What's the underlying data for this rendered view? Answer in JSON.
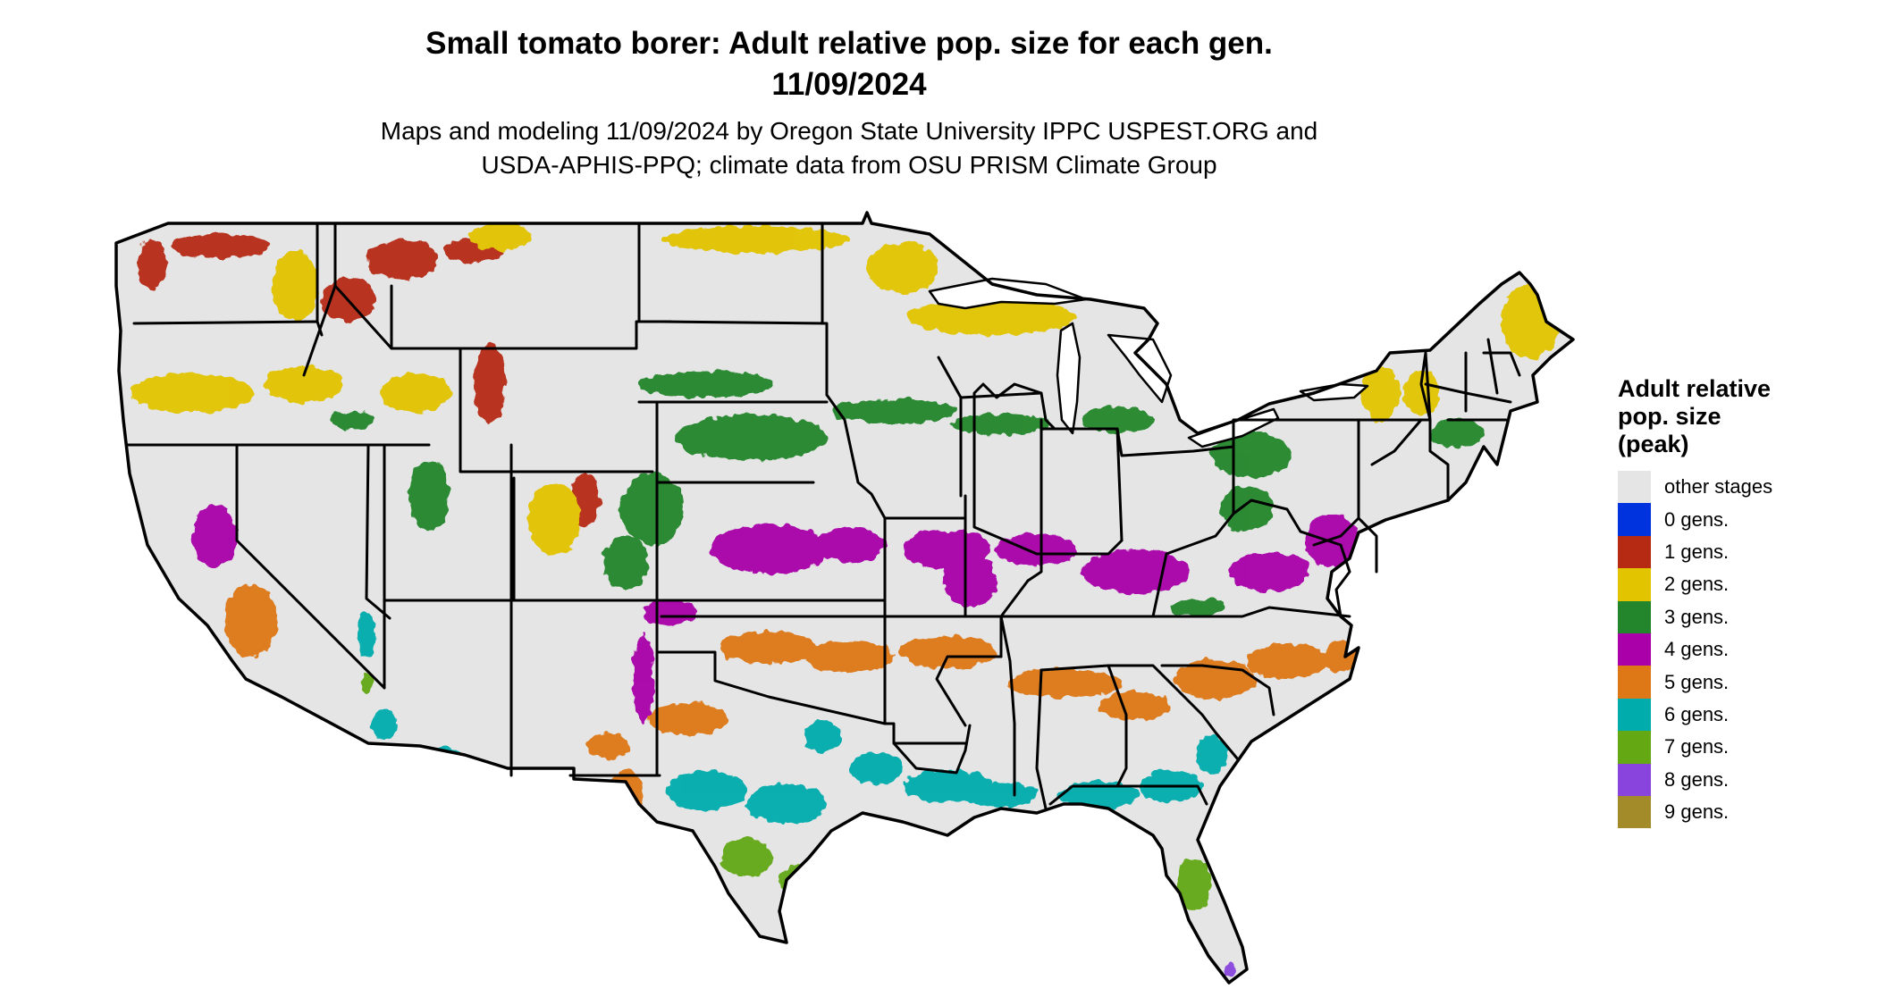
{
  "title": {
    "line1": "Small tomato borer: Adult relative pop. size for each gen.",
    "line2": "11/09/2024"
  },
  "subtitle": {
    "line1": "Maps and modeling 11/09/2024 by Oregon State University IPPC USPEST.ORG and",
    "line2": "USDA-APHIS-PPQ; climate data from OSU PRISM Climate Group"
  },
  "legend": {
    "title_lines": [
      "Adult relative",
      "pop. size",
      "(peak)"
    ],
    "items": [
      {
        "label": "other stages",
        "color": "#e5e5e5"
      },
      {
        "label": "0 gens.",
        "color": "#0033dd"
      },
      {
        "label": "1 gens.",
        "color": "#b62a14"
      },
      {
        "label": "2 gens.",
        "color": "#e2c400"
      },
      {
        "label": "3 gens.",
        "color": "#23862c"
      },
      {
        "label": "4 gens.",
        "color": "#aa00aa"
      },
      {
        "label": "5 gens.",
        "color": "#de7816"
      },
      {
        "label": "6 gens.",
        "color": "#00acac"
      },
      {
        "label": "7 gens.",
        "color": "#64a814"
      },
      {
        "label": "8 gens.",
        "color": "#8844dd"
      },
      {
        "label": "9 gens.",
        "color": "#a48b2a"
      }
    ]
  },
  "map": {
    "base_color": "#e5e5e5",
    "boundary_color": "#000000"
  }
}
